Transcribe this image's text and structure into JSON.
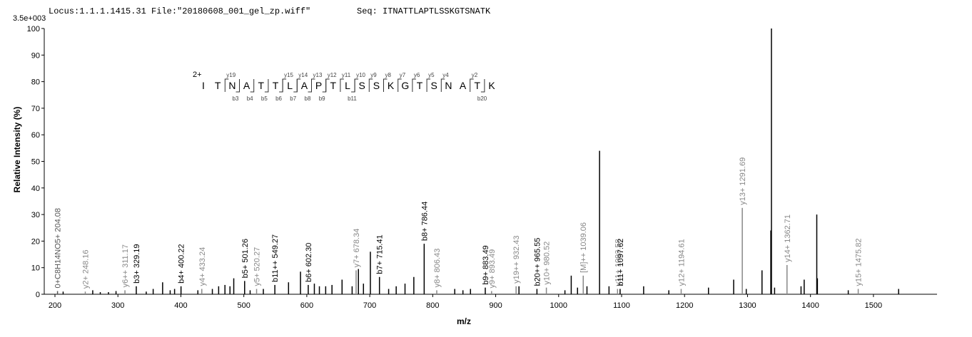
{
  "chart_data": {
    "type": "spectrum",
    "title": "Locus:1.1.1.1415.31 File:\"20180608_001_gel_zp.wiff\"",
    "subtitle": "Seq: ITNATTLAPTLSSKGTSNATK",
    "scale_label": "3.5e+003",
    "x_label": "m/z",
    "y_label": "Relative   Intensity (%)",
    "xlim": [
      183,
      1601
    ],
    "ylim": [
      0,
      100
    ],
    "xticks": [
      200,
      300,
      400,
      500,
      600,
      700,
      800,
      900,
      1000,
      1100,
      1200,
      1300,
      1400,
      1500
    ],
    "yticks": [
      0,
      10,
      20,
      30,
      40,
      50,
      60,
      70,
      80,
      90,
      100
    ],
    "charge": "2+",
    "sequence": [
      "I",
      "T",
      "N",
      "A",
      "T",
      "T",
      "L",
      "A",
      "P",
      "T",
      "L",
      "S",
      "S",
      "K",
      "G",
      "T",
      "S",
      "N",
      "A",
      "T",
      "K"
    ],
    "y_fragments": [
      "y19",
      "y15",
      "y14",
      "y13",
      "y12",
      "y11",
      "y10",
      "y9",
      "y8",
      "y7",
      "y6",
      "y5",
      "y4",
      "y2"
    ],
    "b_fragments": [
      "b3",
      "b4",
      "b5",
      "b6",
      "b7",
      "b8",
      "b9",
      "b11",
      "b20"
    ],
    "x": [
      204.08,
      213,
      248.16,
      260,
      272,
      285,
      297,
      311.17,
      329.19,
      345,
      356,
      371,
      383,
      390,
      400.22,
      427,
      433.24,
      450,
      460,
      470,
      478,
      484,
      501.26,
      510,
      520.27,
      531,
      549.27,
      571,
      590,
      602.3,
      612,
      620,
      630,
      640,
      656,
      672,
      678.34,
      682,
      690,
      701,
      715.41,
      730,
      742,
      756,
      770,
      786.44,
      806.43,
      835,
      848,
      860,
      883.49,
      893.49,
      932.43,
      937,
      965.55,
      980.52,
      1010,
      1020,
      1030,
      1039.06,
      1045,
      1065,
      1080,
      1093.58,
      1097.62,
      1135,
      1175,
      1194.61,
      1238,
      1278,
      1291.69,
      1298,
      1323,
      1337,
      1338,
      1343,
      1362.71,
      1385,
      1390,
      1410,
      1411,
      1460,
      1475.82,
      1540
    ],
    "values": [
      1.2,
      1,
      1,
      1.5,
      0.8,
      0.8,
      1.2,
      1.5,
      3,
      1,
      2,
      4.5,
      1.5,
      2,
      3,
      1.5,
      2,
      2,
      3,
      3.5,
      3,
      6,
      5,
      1.5,
      2,
      2,
      3.5,
      4.5,
      8.5,
      3.5,
      4,
      3,
      3,
      3.5,
      5.5,
      3,
      9,
      9.5,
      4,
      16,
      6.5,
      2,
      3,
      4,
      6.5,
      19,
      1.5,
      2,
      1.5,
      2,
      2.5,
      1.2,
      3,
      3,
      2,
      2.5,
      1.5,
      7,
      2.5,
      7,
      3,
      54,
      3,
      2,
      2,
      3,
      1.5,
      2,
      2.5,
      5.5,
      32.5,
      2,
      9,
      24,
      100,
      2.5,
      11,
      3,
      5.5,
      30,
      6,
      1.5,
      2,
      2
    ],
    "peak_labels": [
      "0+C8H14NO5+ 204.08",
      null,
      "y2+ 248.16",
      null,
      null,
      null,
      null,
      "y6++ 311.17",
      "b3+ 329.19",
      null,
      null,
      null,
      null,
      null,
      "b4+ 400.22",
      null,
      "y4+ 433.24",
      null,
      null,
      null,
      null,
      null,
      "b5+ 501.26",
      null,
      "y5+ 520.27",
      null,
      "b11++ 549.27",
      null,
      null,
      "b6+ 602.30",
      null,
      null,
      null,
      null,
      null,
      null,
      "y7+ 678.34",
      null,
      null,
      null,
      "b7+ 715.41",
      null,
      null,
      null,
      null,
      "b8+ 786.44",
      "y8+ 806.43",
      null,
      null,
      null,
      "b9+ 883.49",
      "y9+ 893.49",
      "y19++ 932.43",
      null,
      "b20++ 965.55",
      "y10+ 980.52",
      null,
      null,
      null,
      "[M]++ 1039.06",
      null,
      null,
      null,
      "y11+ 1093.58",
      "b11+ 1097.62",
      null,
      null,
      "y12+ 1194.61",
      null,
      null,
      "y13+ 1291.69",
      null,
      null,
      null,
      null,
      null,
      "y14+ 1362.71",
      null,
      null,
      null,
      null,
      null,
      "y15+ 1475.82",
      null
    ],
    "colors": [
      "#555",
      "#000",
      "#888",
      "#000",
      "#000",
      "#000",
      "#000",
      "#888",
      "#000",
      "#000",
      "#000",
      "#000",
      "#000",
      "#000",
      "#000",
      "#000",
      "#888",
      "#000",
      "#000",
      "#000",
      "#000",
      "#000",
      "#000",
      "#000",
      "#888",
      "#000",
      "#000",
      "#000",
      "#000",
      "#000",
      "#000",
      "#000",
      "#000",
      "#000",
      "#000",
      "#000",
      "#888",
      "#000",
      "#000",
      "#000",
      "#000",
      "#000",
      "#000",
      "#000",
      "#000",
      "#000",
      "#888",
      "#000",
      "#000",
      "#000",
      "#000",
      "#888",
      "#888",
      "#000",
      "#000",
      "#888",
      "#000",
      "#000",
      "#000",
      "#888",
      "#000",
      "#000",
      "#000",
      "#888",
      "#000",
      "#000",
      "#000",
      "#888",
      "#000",
      "#000",
      "#888",
      "#000",
      "#000",
      "#000",
      "#000",
      "#000",
      "#888",
      "#000",
      "#000",
      "#000",
      "#000",
      "#000",
      "#888",
      "#000"
    ]
  }
}
